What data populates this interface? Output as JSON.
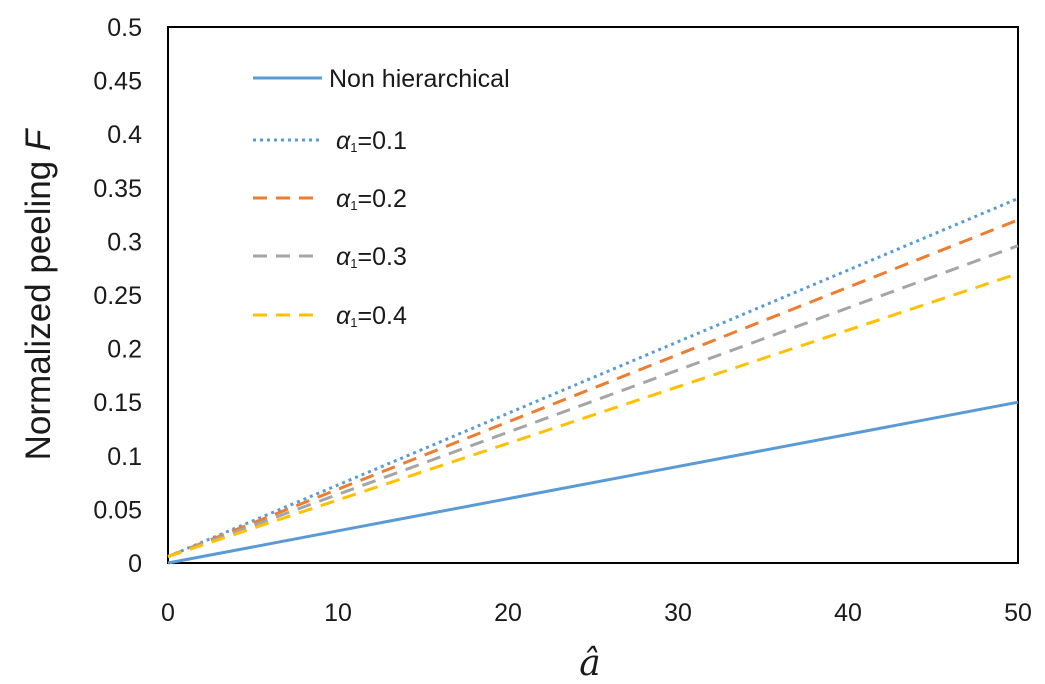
{
  "chart_data": {
    "type": "line",
    "xlabel": "â",
    "ylabel": "Normalized peeling F",
    "xlim": [
      0,
      50
    ],
    "ylim": [
      0,
      0.5
    ],
    "x_ticks": [
      "0",
      "10",
      "20",
      "30",
      "40",
      "50"
    ],
    "y_ticks": [
      "0",
      "0.05",
      "0.1",
      "0.15",
      "0.2",
      "0.25",
      "0.3",
      "0.35",
      "0.4",
      "0.45",
      "0.5"
    ],
    "x_tick_values": [
      0,
      10,
      20,
      30,
      40,
      50
    ],
    "y_tick_values": [
      0,
      0.05,
      0.1,
      0.15,
      0.2,
      0.25,
      0.3,
      0.35,
      0.4,
      0.45,
      0.5
    ],
    "grid": false,
    "legend_position": "top-left",
    "series": [
      {
        "name": "Non hierarchical",
        "symbol": "α",
        "color": "#5b9bd5",
        "dash": "solid",
        "x": [
          0,
          50
        ],
        "y": [
          0.0,
          0.15
        ]
      },
      {
        "name": "α₁=0.1",
        "color": "#5b9bd5",
        "dash": "dotted",
        "x": [
          0,
          50
        ],
        "y": [
          0.006,
          0.34
        ]
      },
      {
        "name": "α₁=0.2",
        "color": "#ed7d31",
        "dash": "dashed",
        "x": [
          0,
          50
        ],
        "y": [
          0.006,
          0.32
        ]
      },
      {
        "name": "α₁=0.3",
        "color": "#a5a5a5",
        "dash": "dashed",
        "x": [
          0,
          50
        ],
        "y": [
          0.006,
          0.296
        ]
      },
      {
        "name": "α₁=0.4",
        "color": "#ffc000",
        "dash": "dashed",
        "x": [
          0,
          50
        ],
        "y": [
          0.006,
          0.27
        ]
      }
    ]
  }
}
